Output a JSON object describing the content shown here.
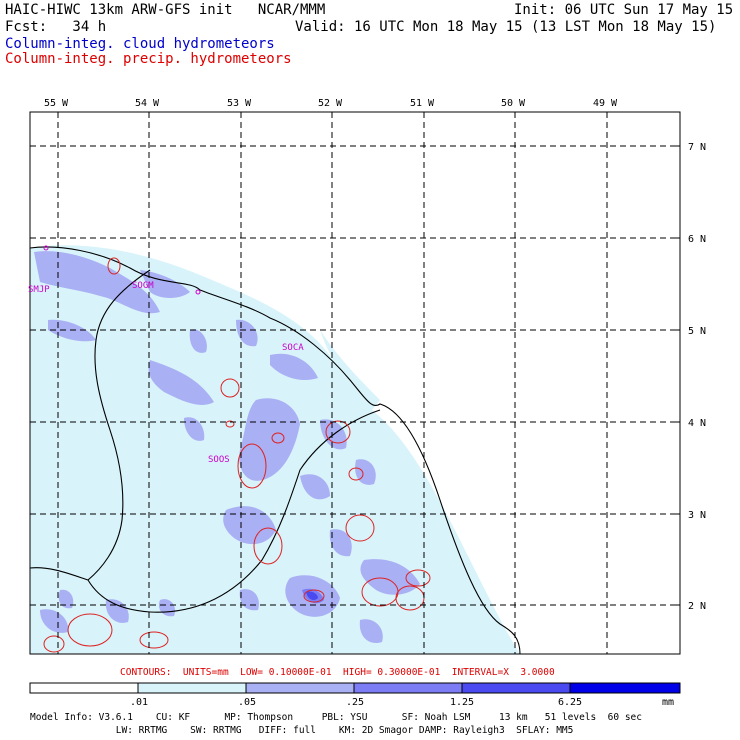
{
  "header": {
    "line1_left": "HAIC-HIWC 13km ARW-GFS init   NCAR/MMM",
    "line1_right": "Init: 06 UTC Sun 17 May 15",
    "line2_left": "Fcst:   34 h",
    "line2_right": "Valid: 16 UTC Mon 18 May 15 (13 LST Mon 18 May 15)",
    "line3": "Column-integ. cloud hydrometeors",
    "line4": "Column-integ. precip. hydrometeors",
    "line3_color": "#0000cc",
    "line4_color": "#dd0000"
  },
  "axes": {
    "lon_labels": [
      "55 W",
      "54 W",
      "53 W",
      "52 W",
      "51 W",
      "50 W",
      "49 W"
    ],
    "lat_labels": [
      "7 N",
      "6 N",
      "5 N",
      "4 N",
      "3 N",
      "2 N"
    ]
  },
  "stations": [
    "SMJP",
    "SOGM",
    "SOCA",
    "SOOS"
  ],
  "contours_line": "CONTOURS:  UNITS=mm  LOW= 0.10000E-01  HIGH= 0.30000E-01  INTERVAL=X  3.0000",
  "colorbar": {
    "ticks": [
      ".01",
      ".05",
      ".25",
      "1.25",
      "6.25"
    ],
    "unit": "mm",
    "colors": [
      "#ffffff",
      "#d8f4fa",
      "#aab0f4",
      "#7c7cf4",
      "#4a4af0",
      "#0000e8"
    ]
  },
  "footer": {
    "line1": "Model Info: V3.6.1    CU: KF      MP: Thompson     PBL: YSU      SF: Noah LSM     13 km   51 levels  60 sec",
    "line2": "               LW: RRTMG    SW: RRTMG   DIFF: full    KM: 2D Smagor DAMP: Rayleigh3  SFLAY: MM5"
  }
}
